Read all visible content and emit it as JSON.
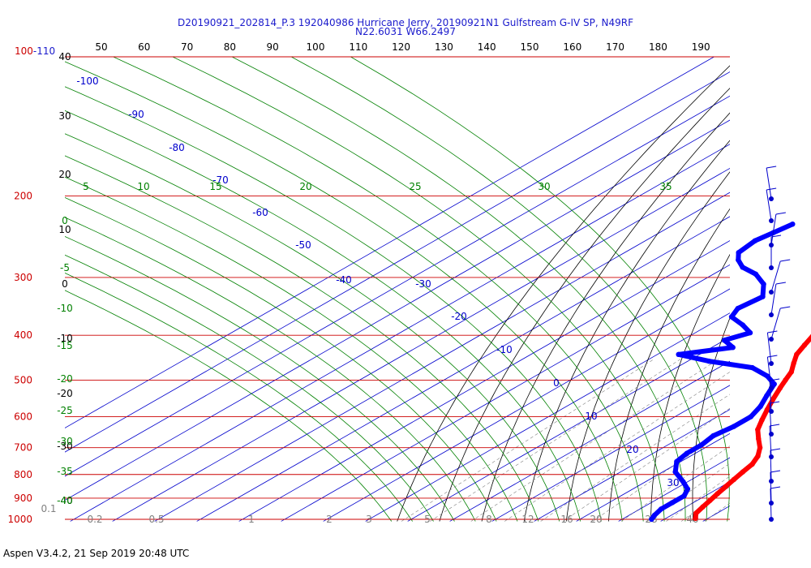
{
  "title_line1": "D20190921_202814_P.3 192040986 Hurricane Jerry, 20190921N1 Gulfstream G-IV SP, N49RF",
  "title_line2": "N22.6031 W66.2497",
  "footer": "Aspen V3.4.2, 21 Sep 2019  20:48 UTC",
  "colors": {
    "temperature": "#ff0000",
    "dewpoint": "#0000ff",
    "isobar": "#cc0000",
    "isotherm": "#0000cc",
    "dry_adiabat": "#000000",
    "moist_adiabat": "#008000",
    "mixing_ratio": "#808080"
  },
  "chart_data": {
    "type": "skew-t log-p",
    "y_axis_pressure_hPa": [
      "100-110",
      "200",
      "300",
      "400",
      "500",
      "600",
      "700",
      "800",
      "900",
      "1000"
    ],
    "top_axis_potential_temperature": [
      "50",
      "60",
      "70",
      "80",
      "90",
      "100",
      "110",
      "120",
      "130",
      "140",
      "150",
      "160",
      "170",
      "180",
      "190"
    ],
    "altitude_labels_kft": [
      "40",
      "30",
      "20",
      "10",
      "0",
      "-10",
      "-20",
      "-30",
      "-40"
    ],
    "isotherm_labels_C": [
      "-100",
      "-90",
      "-80",
      "-70",
      "-60",
      "-50",
      "-40",
      "-30",
      "-20",
      "-10",
      "0",
      "10",
      "20",
      "30"
    ],
    "theta_e_labels": [
      "5",
      "10",
      "15",
      "20",
      "25",
      "30",
      "35"
    ],
    "moist_adiabat_left_labels": [
      "0",
      "-5",
      "-10",
      "-15",
      "-20",
      "-25",
      "-30",
      "-35",
      "-40"
    ],
    "mixing_ratio_labels": [
      "0.1",
      "0.2",
      "0.5",
      "1",
      "2",
      "3",
      "5",
      "8",
      "12",
      "16",
      "20",
      "28",
      "40"
    ],
    "temperature_profile": [
      {
        "p": 178,
        "t": -57
      },
      {
        "p": 185,
        "t": -58
      },
      {
        "p": 195,
        "t": -57
      },
      {
        "p": 205,
        "t": -55
      },
      {
        "p": 220,
        "t": -51
      },
      {
        "p": 240,
        "t": -47
      },
      {
        "p": 260,
        "t": -43
      },
      {
        "p": 280,
        "t": -39
      },
      {
        "p": 300,
        "t": -35
      },
      {
        "p": 320,
        "t": -31
      },
      {
        "p": 340,
        "t": -27
      },
      {
        "p": 360,
        "t": -24
      },
      {
        "p": 380,
        "t": -23
      },
      {
        "p": 400,
        "t": -21
      },
      {
        "p": 420,
        "t": -19
      },
      {
        "p": 440,
        "t": -17
      },
      {
        "p": 460,
        "t": -14
      },
      {
        "p": 480,
        "t": -11
      },
      {
        "p": 500,
        "t": -9
      },
      {
        "p": 520,
        "t": -7
      },
      {
        "p": 550,
        "t": -4
      },
      {
        "p": 580,
        "t": -1
      },
      {
        "p": 610,
        "t": 2
      },
      {
        "p": 640,
        "t": 5
      },
      {
        "p": 670,
        "t": 9
      },
      {
        "p": 700,
        "t": 13
      },
      {
        "p": 730,
        "t": 16
      },
      {
        "p": 760,
        "t": 18
      },
      {
        "p": 790,
        "t": 19
      },
      {
        "p": 820,
        "t": 20
      },
      {
        "p": 850,
        "t": 21
      },
      {
        "p": 880,
        "t": 22
      },
      {
        "p": 910,
        "t": 23
      },
      {
        "p": 940,
        "t": 24
      },
      {
        "p": 970,
        "t": 25
      },
      {
        "p": 995,
        "t": 27
      }
    ],
    "dewpoint_profile": [
      {
        "p": 230,
        "t": -72
      },
      {
        "p": 240,
        "t": -73
      },
      {
        "p": 250,
        "t": -74
      },
      {
        "p": 265,
        "t": -73
      },
      {
        "p": 275,
        "t": -70
      },
      {
        "p": 285,
        "t": -66
      },
      {
        "p": 295,
        "t": -60
      },
      {
        "p": 310,
        "t": -54
      },
      {
        "p": 330,
        "t": -49
      },
      {
        "p": 350,
        "t": -50
      },
      {
        "p": 365,
        "t": -48
      },
      {
        "p": 380,
        "t": -42
      },
      {
        "p": 395,
        "t": -37
      },
      {
        "p": 410,
        "t": -40
      },
      {
        "p": 425,
        "t": -35
      },
      {
        "p": 440,
        "t": -45
      },
      {
        "p": 455,
        "t": -35
      },
      {
        "p": 470,
        "t": -22
      },
      {
        "p": 490,
        "t": -15
      },
      {
        "p": 510,
        "t": -10
      },
      {
        "p": 540,
        "t": -7
      },
      {
        "p": 570,
        "t": -4
      },
      {
        "p": 600,
        "t": -2
      },
      {
        "p": 630,
        "t": -2
      },
      {
        "p": 660,
        "t": -3
      },
      {
        "p": 690,
        "t": -2
      },
      {
        "p": 720,
        "t": -2
      },
      {
        "p": 750,
        "t": -1
      },
      {
        "p": 790,
        "t": 3
      },
      {
        "p": 830,
        "t": 9
      },
      {
        "p": 860,
        "t": 13
      },
      {
        "p": 890,
        "t": 15
      },
      {
        "p": 920,
        "t": 15
      },
      {
        "p": 950,
        "t": 15
      },
      {
        "p": 980,
        "t": 16
      },
      {
        "p": 1000,
        "t": 17
      }
    ]
  }
}
